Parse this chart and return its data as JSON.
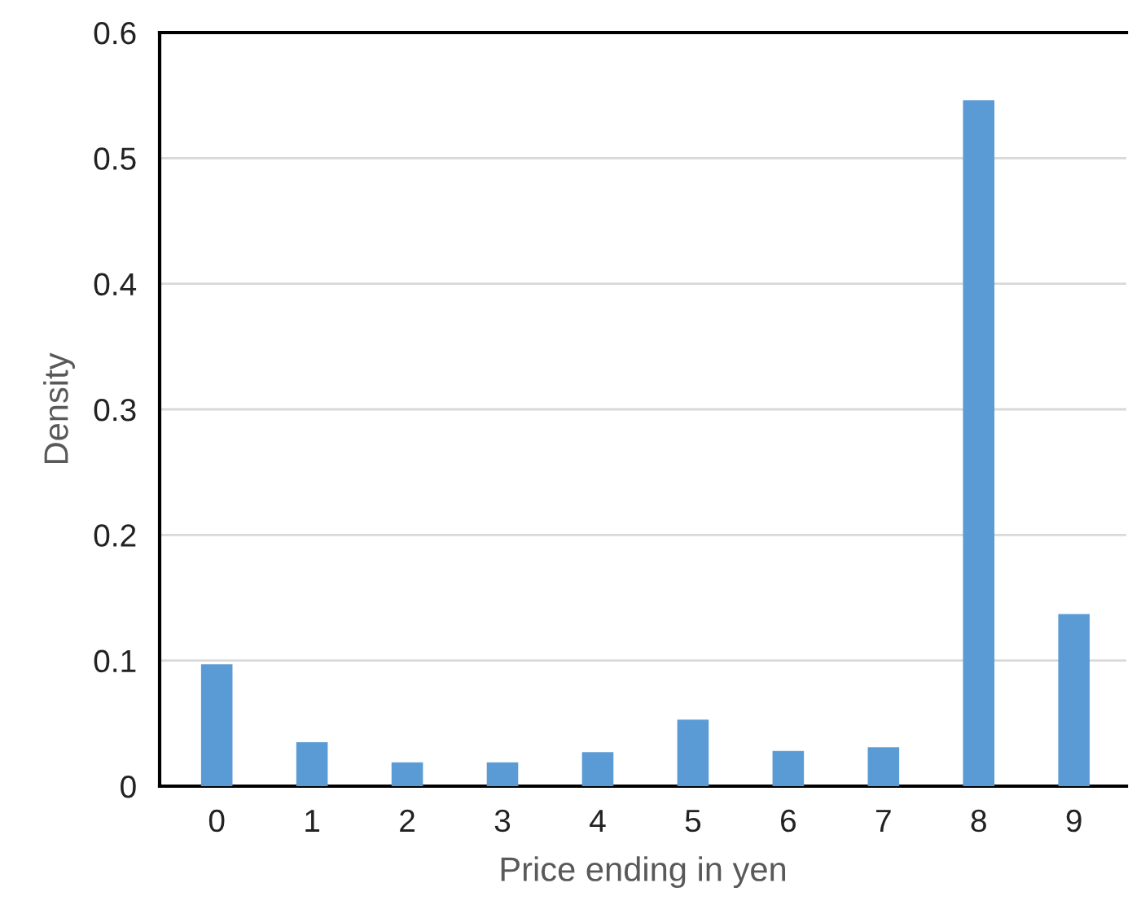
{
  "chart_data": {
    "type": "bar",
    "xlabel": "Price ending in yen",
    "ylabel": "Density",
    "categories": [
      "0",
      "1",
      "2",
      "3",
      "4",
      "5",
      "6",
      "7",
      "8",
      "9"
    ],
    "values": [
      0.097,
      0.035,
      0.019,
      0.019,
      0.027,
      0.053,
      0.028,
      0.031,
      0.546,
      0.137
    ],
    "color": "#5b9bd5",
    "ylim": [
      0,
      0.6
    ],
    "yticks": [
      {
        "value": 0,
        "label": "0"
      },
      0.1,
      0.2,
      0.3,
      0.4,
      0.5,
      0.6
    ],
    "grid": "y",
    "legend": false
  }
}
